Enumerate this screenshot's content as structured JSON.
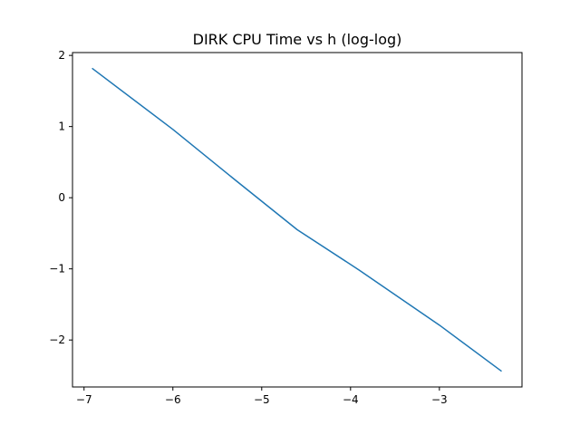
{
  "chart_data": {
    "type": "line",
    "title": "DIRK CPU Time vs h (log-log)",
    "xlabel": "",
    "ylabel": "",
    "xlim": [
      -7.13,
      -2.07
    ],
    "ylim": [
      -2.66,
      2.04
    ],
    "xticks": [
      -7,
      -6,
      -5,
      -4,
      -3
    ],
    "yticks": [
      -2,
      -1,
      0,
      1,
      2
    ],
    "grid": false,
    "series": [
      {
        "color": "#1f77b4",
        "x": [
          -6.91,
          -6.0,
          -5.3,
          -4.6,
          -3.9,
          -3.0,
          -2.3
        ],
        "y": [
          1.82,
          0.96,
          0.25,
          -0.45,
          -1.02,
          -1.79,
          -2.44
        ]
      }
    ]
  }
}
